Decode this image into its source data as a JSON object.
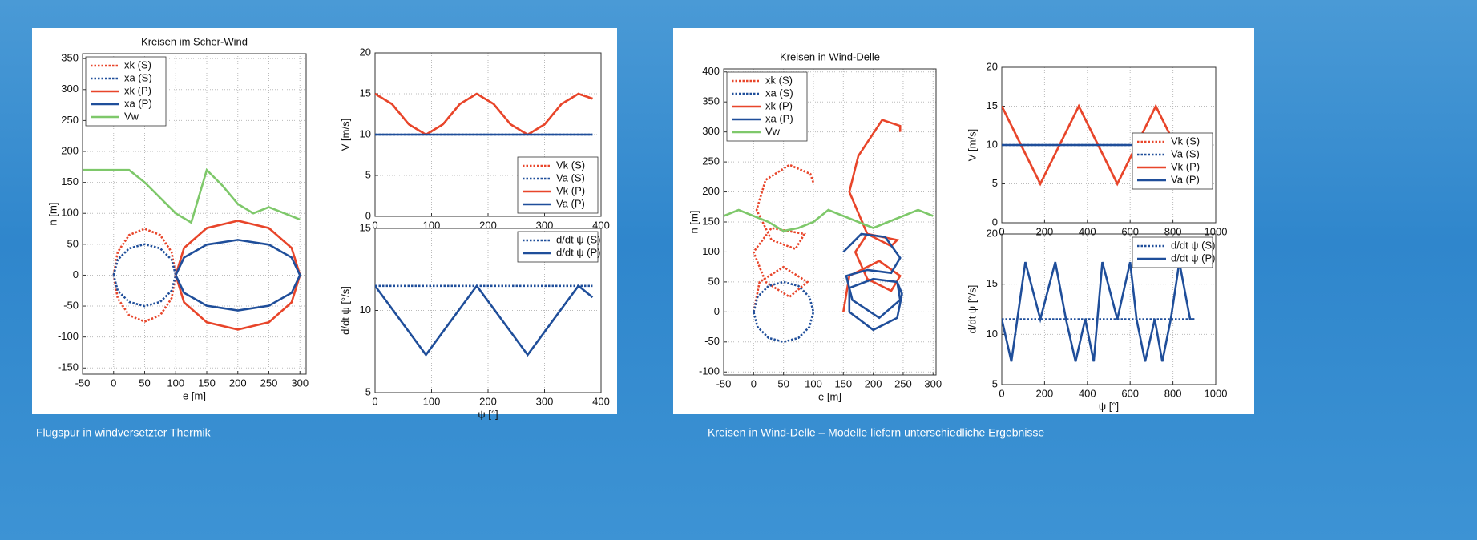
{
  "chart_data": [
    {
      "type": "line",
      "title": "Kreisen im Scher-Wind",
      "xlabel": "e [m]",
      "ylabel": "n [m]",
      "xlim": [
        -50,
        310
      ],
      "xticks": [
        -50,
        0,
        50,
        100,
        150,
        200,
        250,
        300
      ],
      "ylim": [
        -160,
        358
      ],
      "yticks": [
        -150,
        -100,
        -50,
        0,
        50,
        100,
        150,
        200,
        250,
        300,
        350
      ],
      "grid": true,
      "legend": "upper left",
      "series": [
        {
          "name": "xk (S)",
          "color": "#e8452a",
          "linestyle": "dotted",
          "x": [
            0,
            6.7,
            25,
            50,
            75,
            93.3,
            100,
            93.3,
            75,
            50,
            25,
            6.7,
            0
          ],
          "values": [
            0,
            37.5,
            65,
            75,
            65,
            37.5,
            0,
            -37.5,
            -65,
            -75,
            -65,
            -37.5,
            0
          ]
        },
        {
          "name": "xa (S)",
          "color": "#1f4e9a",
          "linestyle": "dotted",
          "x": [
            0,
            6.7,
            25,
            50,
            75,
            93.3,
            100,
            93.3,
            75,
            50,
            25,
            6.7,
            0
          ],
          "values": [
            0,
            25,
            43.3,
            50,
            43.3,
            25,
            0,
            -25,
            -43.3,
            -50,
            -43.3,
            -25,
            0
          ]
        },
        {
          "name": "xk (P)",
          "color": "#e8452a",
          "linestyle": "solid",
          "x": [
            100,
            113.4,
            150,
            200,
            250,
            286.6,
            300,
            286.6,
            250,
            200,
            150,
            113.4,
            100
          ],
          "values": [
            0,
            44,
            76.2,
            88,
            76.2,
            44,
            0,
            -44,
            -76.2,
            -88,
            -76.2,
            -44,
            0
          ]
        },
        {
          "name": "xa (P)",
          "color": "#1f4e9a",
          "linestyle": "solid",
          "x": [
            100,
            113.4,
            150,
            200,
            250,
            286.6,
            300,
            286.6,
            250,
            200,
            150,
            113.4,
            100
          ],
          "values": [
            0,
            28.5,
            49.4,
            57,
            49.4,
            28.5,
            0,
            -28.5,
            -49.4,
            -57,
            -49.4,
            -28.5,
            0
          ]
        },
        {
          "name": "Vw",
          "color": "#7ec86a",
          "linestyle": "solid",
          "x": [
            -50,
            -25,
            0,
            25,
            50,
            75,
            100,
            125,
            150,
            175,
            200,
            225,
            250,
            275,
            300
          ],
          "values": [
            170,
            170,
            170,
            170,
            150,
            125,
            100,
            85,
            170,
            145,
            115,
            100,
            110,
            100,
            90
          ]
        }
      ]
    },
    {
      "type": "line",
      "ylabel": "V [m/s]",
      "xlim": [
        0,
        400
      ],
      "xticks": [
        0,
        100,
        200,
        300,
        400
      ],
      "ylim": [
        0,
        20
      ],
      "yticks": [
        0,
        5,
        10,
        15,
        20
      ],
      "grid": true,
      "legend": "lower right",
      "series": [
        {
          "name": "Vk (S)",
          "color": "#e8452a",
          "linestyle": "dotted",
          "x": [
            0,
            30,
            60,
            90,
            120,
            150,
            180,
            210,
            240,
            270,
            300,
            330,
            360,
            385
          ],
          "values": [
            15,
            13.75,
            11.25,
            10,
            11.25,
            13.75,
            15,
            13.75,
            11.25,
            10,
            11.25,
            13.75,
            15,
            14.4
          ]
        },
        {
          "name": "Va (S)",
          "color": "#1f4e9a",
          "linestyle": "dotted",
          "x": [
            0,
            385
          ],
          "values": [
            10,
            10
          ]
        },
        {
          "name": "Vk (P)",
          "color": "#e8452a",
          "linestyle": "solid",
          "x": [
            0,
            30,
            60,
            90,
            120,
            150,
            180,
            210,
            240,
            270,
            300,
            330,
            360,
            385
          ],
          "values": [
            15,
            13.75,
            11.25,
            10,
            11.25,
            13.75,
            15,
            13.75,
            11.25,
            10,
            11.25,
            13.75,
            15,
            14.4
          ]
        },
        {
          "name": "Va (P)",
          "color": "#1f4e9a",
          "linestyle": "solid",
          "x": [
            0,
            385
          ],
          "values": [
            10,
            10
          ]
        }
      ]
    },
    {
      "type": "line",
      "xlabel": "ψ [°]",
      "ylabel": "d/dt ψ [°/s]",
      "xlim": [
        0,
        400
      ],
      "xticks": [
        0,
        100,
        200,
        300,
        400
      ],
      "ylim": [
        5,
        15
      ],
      "yticks": [
        5,
        10,
        15
      ],
      "grid": true,
      "legend": "upper right",
      "series": [
        {
          "name": "d/dt ψ (S)",
          "color": "#1f4e9a",
          "linestyle": "dotted",
          "x": [
            0,
            385
          ],
          "values": [
            11.5,
            11.5
          ]
        },
        {
          "name": "d/dt ψ (P)",
          "color": "#1f4e9a",
          "linestyle": "solid",
          "x": [
            0,
            45,
            90,
            135,
            180,
            225,
            270,
            315,
            360,
            385
          ],
          "values": [
            11.5,
            9.4,
            7.3,
            9.4,
            11.5,
            9.4,
            7.3,
            9.4,
            11.5,
            10.8
          ]
        }
      ]
    },
    {
      "type": "line",
      "title": "Kreisen in Wind-Delle",
      "xlabel": "e [m]",
      "ylabel": "n [m]",
      "xlim": [
        -50,
        305
      ],
      "xticks": [
        -50,
        0,
        50,
        100,
        150,
        200,
        250,
        300
      ],
      "ylim": [
        -105,
        405
      ],
      "yticks": [
        -100,
        -50,
        0,
        50,
        100,
        150,
        200,
        250,
        300,
        350,
        400
      ],
      "grid": true,
      "legend": "upper left",
      "series": [
        {
          "name": "xk (S)",
          "color": "#e8452a",
          "linestyle": "dotted",
          "x": [
            0,
            10,
            50,
            90,
            60,
            20,
            0,
            30,
            85,
            70,
            30,
            5,
            20,
            60,
            95,
            100
          ],
          "values": [
            0,
            50,
            75,
            50,
            25,
            50,
            100,
            140,
            130,
            105,
            120,
            170,
            220,
            245,
            230,
            215
          ]
        },
        {
          "name": "xa (S)",
          "color": "#1f4e9a",
          "linestyle": "dotted",
          "x": [
            0,
            6.7,
            25,
            50,
            75,
            93.3,
            100,
            93.3,
            75,
            50,
            25,
            6.7,
            0
          ],
          "values": [
            0,
            25,
            43.3,
            50,
            43.3,
            25,
            0,
            -25,
            -43.3,
            -50,
            -43.3,
            -25,
            0
          ]
        },
        {
          "name": "xk (P)",
          "color": "#e8452a",
          "linestyle": "solid",
          "x": [
            150,
            160,
            210,
            245,
            230,
            190,
            170,
            190,
            240,
            230,
            190,
            160,
            175,
            215,
            245,
            245
          ],
          "values": [
            0,
            60,
            85,
            60,
            35,
            55,
            100,
            130,
            120,
            110,
            130,
            200,
            260,
            320,
            310,
            300
          ]
        },
        {
          "name": "xa (P)",
          "color": "#1f4e9a",
          "linestyle": "solid",
          "x": [
            150,
            180,
            220,
            245,
            230,
            190,
            155,
            165,
            210,
            245,
            240,
            200,
            160,
            160,
            200,
            240,
            248,
            240
          ],
          "values": [
            100,
            130,
            125,
            90,
            65,
            70,
            60,
            20,
            -10,
            20,
            50,
            55,
            40,
            0,
            -30,
            -10,
            30,
            50
          ]
        },
        {
          "name": "Vw",
          "color": "#7ec86a",
          "linestyle": "solid",
          "x": [
            -50,
            -25,
            0,
            25,
            50,
            75,
            100,
            125,
            150,
            175,
            200,
            225,
            250,
            275,
            300
          ],
          "values": [
            160,
            170,
            160,
            150,
            135,
            140,
            150,
            170,
            160,
            150,
            140,
            150,
            160,
            170,
            160
          ]
        }
      ]
    },
    {
      "type": "line",
      "ylabel": "V [m/s]",
      "xlim": [
        0,
        1000
      ],
      "xticks": [
        0,
        200,
        400,
        600,
        800,
        1000
      ],
      "ylim": [
        0,
        20
      ],
      "yticks": [
        0,
        5,
        10,
        15,
        20
      ],
      "grid": true,
      "legend": "center right",
      "series": [
        {
          "name": "Vk (S)",
          "color": "#e8452a",
          "linestyle": "dotted",
          "x": [
            0,
            90,
            180,
            270,
            360,
            450,
            540,
            630,
            720,
            810,
            850
          ],
          "values": [
            15,
            10,
            5,
            10,
            15,
            10,
            5,
            10,
            15,
            10,
            9
          ]
        },
        {
          "name": "Va (S)",
          "color": "#1f4e9a",
          "linestyle": "dotted",
          "x": [
            0,
            900
          ],
          "values": [
            10,
            10
          ]
        },
        {
          "name": "Vk (P)",
          "color": "#e8452a",
          "linestyle": "solid",
          "x": [
            0,
            90,
            180,
            270,
            360,
            450,
            540,
            630,
            720,
            810,
            850
          ],
          "values": [
            15,
            10,
            5,
            10,
            15,
            10,
            5,
            10,
            15,
            10,
            9
          ]
        },
        {
          "name": "Va (P)",
          "color": "#1f4e9a",
          "linestyle": "solid",
          "x": [
            0,
            900
          ],
          "values": [
            10,
            10
          ]
        }
      ]
    },
    {
      "type": "line",
      "xlabel": "ψ [°]",
      "ylabel": "d/dt ψ [°/s]",
      "xlim": [
        0,
        1000
      ],
      "xticks": [
        0,
        200,
        400,
        600,
        800,
        1000
      ],
      "ylim": [
        5,
        20
      ],
      "yticks": [
        5,
        10,
        15,
        20
      ],
      "grid": true,
      "legend": "upper right",
      "series": [
        {
          "name": "d/dt ψ (S)",
          "color": "#1f4e9a",
          "linestyle": "dotted",
          "x": [
            0,
            900
          ],
          "values": [
            11.5,
            11.5
          ]
        },
        {
          "name": "d/dt ψ (P)",
          "color": "#1f4e9a",
          "linestyle": "solid",
          "x": [
            0,
            45,
            110,
            180,
            250,
            300,
            345,
            390,
            430,
            470,
            540,
            600,
            630,
            670,
            715,
            750,
            790,
            830,
            880,
            900
          ],
          "values": [
            11.5,
            7.3,
            17.2,
            11.5,
            17.2,
            11.5,
            7.3,
            11.5,
            7.3,
            17.2,
            11.5,
            17.2,
            11.5,
            7.3,
            11.5,
            7.3,
            11.5,
            17.2,
            11.5,
            11.5
          ]
        }
      ]
    }
  ],
  "captions": [
    "Flugspur in windversetzter Thermik",
    "Kreisen in Wind-Delle – Modelle liefern unterschiedliche Ergebnisse"
  ]
}
